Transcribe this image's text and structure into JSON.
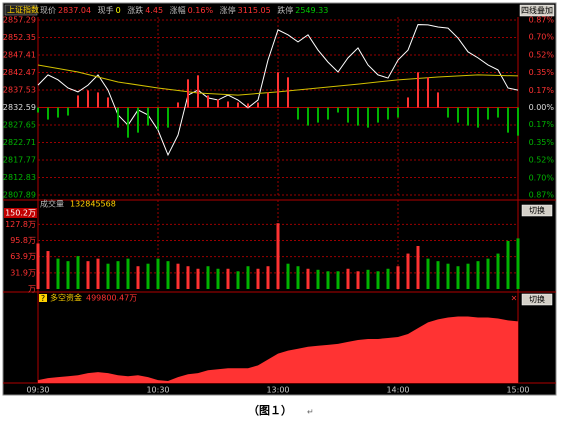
{
  "chart_data": [
    {
      "type": "line",
      "title": "上证指数",
      "info": [
        {
          "label": "现价",
          "value": "2837.04"
        },
        {
          "label": "现手",
          "value": "0"
        },
        {
          "label": "涨跌",
          "value": "4.45"
        },
        {
          "label": "涨幅",
          "value": "0.16%"
        },
        {
          "label": "涨停",
          "value": "3115.05"
        },
        {
          "label": "跌停",
          "value": "2549.33"
        }
      ],
      "button": "四线叠加",
      "xlim": [
        0,
        240
      ],
      "x": [
        0,
        5,
        10,
        15,
        20,
        25,
        30,
        35,
        40,
        45,
        50,
        55,
        60,
        65,
        70,
        75,
        80,
        85,
        90,
        95,
        100,
        105,
        110,
        115,
        120,
        125,
        130,
        135,
        140,
        145,
        150,
        155,
        160,
        165,
        170,
        175,
        180,
        185,
        190,
        195,
        200,
        205,
        210,
        215,
        220,
        225,
        230,
        235,
        240
      ],
      "ylim": [
        2807.89,
        2857.29
      ],
      "yticks": [
        2857.29,
        2852.35,
        2847.41,
        2842.47,
        2837.53,
        2832.59,
        2827.65,
        2822.71,
        2817.77,
        2812.83,
        2807.89
      ],
      "y2lim": [
        -0.87,
        0.87
      ],
      "y2ticks": [
        {
          "value": 0.87,
          "label": "0.87%"
        },
        {
          "value": 0.7,
          "label": "0.70%"
        },
        {
          "value": 0.52,
          "label": "0.52%"
        },
        {
          "value": 0.35,
          "label": "0.35%"
        },
        {
          "value": 0.17,
          "label": "0.17%"
        },
        {
          "value": 0,
          "label": "0.00%"
        },
        {
          "value": -0.17,
          "label": "0.17%"
        },
        {
          "value": -0.35,
          "label": "0.35%"
        },
        {
          "value": -0.52,
          "label": "0.52%"
        },
        {
          "value": -0.7,
          "label": "0.70%"
        },
        {
          "value": -0.87,
          "label": "0.87%"
        }
      ],
      "grid": true,
      "up_color": "#ff3232",
      "down_color": "#00b400",
      "series": [
        {
          "color": "#ffffff",
          "values": [
            2838.9,
            2841.8,
            2840.4,
            2838.1,
            2837.0,
            2838.9,
            2841.8,
            2837.5,
            2830.5,
            2827.6,
            2831.9,
            2830.5,
            2826.2,
            2819.2,
            2824.8,
            2836.1,
            2837.5,
            2835.3,
            2834.7,
            2836.1,
            2834.7,
            2832.5,
            2834.7,
            2846.0,
            2854.5,
            2853.1,
            2851.1,
            2853.1,
            2848.8,
            2845.4,
            2842.6,
            2846.6,
            2849.4,
            2844.6,
            2841.8,
            2840.9,
            2846.0,
            2848.8,
            2856.0,
            2855.9,
            2855.3,
            2855.0,
            2852.2,
            2848.3,
            2846.6,
            2844.6,
            2843.2,
            2838.1,
            2837.5
          ]
        },
        {
          "color": "#d2c000",
          "x": [
            0,
            20,
            40,
            60,
            80,
            100,
            120,
            140,
            160,
            180,
            200,
            220,
            240
          ],
          "values": [
            2844.6,
            2842.6,
            2839.8,
            2838.1,
            2836.7,
            2836.1,
            2837.0,
            2838.1,
            2839.2,
            2840.4,
            2841.2,
            2841.8,
            2841.5
          ]
        },
        {
          "type": "bar",
          "axis": "y2",
          "values": [
            -0.05,
            -0.12,
            -0.1,
            -0.08,
            0.12,
            0.17,
            0.15,
            0.1,
            -0.2,
            -0.3,
            -0.25,
            -0.18,
            -0.22,
            -0.2,
            0.05,
            0.28,
            0.32,
            0.12,
            0.08,
            0.06,
            0.05,
            0.04,
            0.05,
            0.15,
            0.35,
            0.3,
            -0.12,
            -0.18,
            -0.15,
            -0.12,
            -0.05,
            -0.15,
            -0.18,
            -0.2,
            -0.15,
            -0.12,
            -0.1,
            0.1,
            0.35,
            0.3,
            0.15,
            -0.1,
            -0.15,
            -0.18,
            -0.2,
            -0.12,
            -0.1,
            -0.25,
            -0.28
          ]
        }
      ]
    },
    {
      "type": "bar",
      "title": "成交量",
      "subtitle": "132845568",
      "button": "切换",
      "xlim": [
        0,
        240
      ],
      "x": [
        0,
        5,
        10,
        15,
        20,
        25,
        30,
        35,
        40,
        45,
        50,
        55,
        60,
        65,
        70,
        75,
        80,
        85,
        90,
        95,
        100,
        105,
        110,
        115,
        120,
        125,
        130,
        135,
        140,
        145,
        150,
        155,
        160,
        165,
        170,
        175,
        180,
        185,
        190,
        195,
        200,
        205,
        210,
        215,
        220,
        225,
        230,
        235,
        240
      ],
      "ylim": [
        0,
        150.2
      ],
      "yticks": [
        {
          "value": 150.2,
          "label": "150.2万"
        },
        {
          "value": 127.8,
          "label": "127.8万"
        },
        {
          "value": 95.8,
          "label": "95.8万"
        },
        {
          "value": 63.9,
          "label": "63.9万"
        },
        {
          "value": 31.9,
          "label": "31.9万"
        },
        {
          "value": 0,
          "label": "万"
        }
      ],
      "grid": true,
      "up_color": "#ff3232",
      "down_color": "#00b400",
      "values": [
        90,
        75,
        60,
        55,
        65,
        55,
        60,
        50,
        55,
        60,
        45,
        50,
        60,
        55,
        50,
        45,
        40,
        45,
        40,
        40,
        35,
        45,
        40,
        45,
        130,
        50,
        45,
        40,
        38,
        35,
        35,
        40,
        35,
        38,
        35,
        40,
        45,
        70,
        85,
        60,
        55,
        50,
        45,
        50,
        55,
        60,
        70,
        95,
        100
      ]
    },
    {
      "type": "area",
      "title": "多空资金",
      "subtitle": "499800.47万",
      "button": "切换",
      "xlim": [
        0,
        240
      ],
      "xticks": [
        {
          "value": 0,
          "label": "09:30"
        },
        {
          "value": 60,
          "label": "10:30"
        },
        {
          "value": 120,
          "label": "13:00"
        },
        {
          "value": 180,
          "label": "14:00"
        },
        {
          "value": 240,
          "label": "15:00"
        }
      ],
      "x": [
        0,
        5,
        10,
        15,
        20,
        25,
        30,
        35,
        40,
        45,
        50,
        55,
        60,
        65,
        70,
        75,
        80,
        85,
        90,
        95,
        100,
        105,
        110,
        115,
        120,
        125,
        130,
        135,
        140,
        145,
        150,
        155,
        160,
        165,
        170,
        175,
        180,
        185,
        190,
        195,
        200,
        205,
        210,
        215,
        220,
        225,
        230,
        235,
        240
      ],
      "ylim": [
        0,
        620000
      ],
      "color": "#ff3333",
      "values": [
        23000,
        39000,
        47000,
        54000,
        62000,
        78000,
        86000,
        78000,
        62000,
        54000,
        62000,
        47000,
        23000,
        16000,
        47000,
        70000,
        78000,
        101000,
        109000,
        117000,
        117000,
        117000,
        140000,
        187000,
        233000,
        257000,
        272000,
        288000,
        296000,
        303000,
        311000,
        327000,
        342000,
        350000,
        350000,
        358000,
        366000,
        389000,
        436000,
        482000,
        506000,
        521000,
        529000,
        529000,
        521000,
        521000,
        513000,
        498000,
        490000
      ]
    }
  ],
  "caption": "（图１）",
  "caption_mark": "↵"
}
